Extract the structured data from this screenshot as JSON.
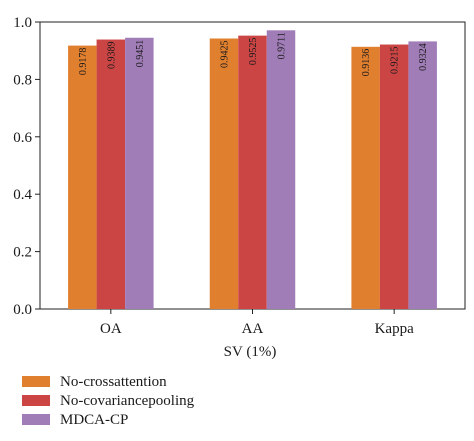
{
  "chart_data": {
    "type": "bar",
    "title": "",
    "xlabel": "SV (1%)",
    "ylabel": "",
    "ylim": [
      0,
      1.0
    ],
    "yticks": [
      "0.0",
      "0.2",
      "0.4",
      "0.6",
      "0.8",
      "1.0"
    ],
    "categories": [
      "OA",
      "AA",
      "Kappa"
    ],
    "series": [
      {
        "name": "No-crossattention",
        "color": "#e07f2e",
        "values": [
          0.9178,
          0.9425,
          0.9136
        ],
        "labels": [
          "0.9178",
          "0.9425",
          "0.9136"
        ]
      },
      {
        "name": "No-covariancepooling",
        "color": "#cc4545",
        "values": [
          0.9389,
          0.9525,
          0.9215
        ],
        "labels": [
          "0.9389",
          "0.9525",
          "0.9215"
        ]
      },
      {
        "name": "MDCA-CP",
        "color": "#a17db8",
        "values": [
          0.9451,
          0.9711,
          0.9324
        ],
        "labels": [
          "0.9451",
          "0.9711",
          "0.9324"
        ]
      }
    ],
    "grid": false,
    "legend_position": "bottom-left"
  }
}
